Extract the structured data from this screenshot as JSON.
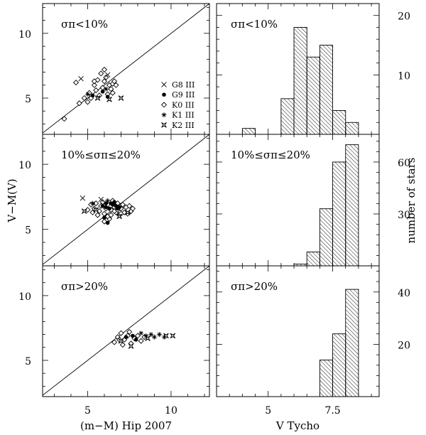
{
  "chart_data": [
    {
      "type": "scatter",
      "panel": "top-left",
      "label": "σπ<10%",
      "xlabel": "",
      "ylabel": "V−M(V)",
      "xlim": [
        2.3,
        12.3
      ],
      "ylim": [
        2.2,
        12.3
      ],
      "xticks": [
        5,
        10
      ],
      "yticks": [
        5,
        10
      ],
      "one_to_one_line": true,
      "legend": {
        "placement": "right",
        "entries": [
          {
            "marker": "x",
            "label": "G8 III"
          },
          {
            "marker": "dot",
            "label": "G9 III"
          },
          {
            "marker": "diamond",
            "label": "K0 III"
          },
          {
            "marker": "asterisk",
            "label": "K1 III"
          },
          {
            "marker": "star4",
            "label": "K2 III"
          }
        ]
      },
      "series": [
        {
          "marker": "diamond",
          "points": [
            [
              3.6,
              3.4
            ],
            [
              4.5,
              4.6
            ],
            [
              4.8,
              5.0
            ],
            [
              5.0,
              4.7
            ],
            [
              5.1,
              5.4
            ],
            [
              5.2,
              5.0
            ],
            [
              5.4,
              6.0
            ],
            [
              5.5,
              5.6
            ],
            [
              5.6,
              6.4
            ],
            [
              5.8,
              6.9
            ],
            [
              5.9,
              5.8
            ],
            [
              6.0,
              6.3
            ],
            [
              6.1,
              6.6
            ],
            [
              6.2,
              5.3
            ],
            [
              6.3,
              6.0
            ],
            [
              6.4,
              5.7
            ],
            [
              6.5,
              6.1
            ],
            [
              6.6,
              6.3
            ],
            [
              6.7,
              6.0
            ],
            [
              6.0,
              7.2
            ],
            [
              5.4,
              6.3
            ],
            [
              5.7,
              5.2
            ],
            [
              6.5,
              5.4
            ],
            [
              4.3,
              6.2
            ]
          ]
        },
        {
          "marker": "x",
          "points": [
            [
              4.6,
              6.5
            ],
            [
              6.2,
              6.8
            ]
          ]
        },
        {
          "marker": "dot",
          "points": [
            [
              5.3,
              5.2
            ],
            [
              5.9,
              5.5
            ],
            [
              6.2,
              5.1
            ]
          ]
        },
        {
          "marker": "asterisk",
          "points": [
            [
              5.0,
              5.3
            ],
            [
              6.1,
              5.7
            ]
          ]
        },
        {
          "marker": "star4",
          "points": [
            [
              5.6,
              5.0
            ],
            [
              6.3,
              4.9
            ],
            [
              7.0,
              5.0
            ]
          ]
        }
      ]
    },
    {
      "type": "scatter",
      "panel": "middle-left",
      "label": "10%≤σπ≤20%",
      "xlabel": "",
      "ylabel": "",
      "xlim": [
        2.3,
        12.3
      ],
      "ylim": [
        2.2,
        12.3
      ],
      "xticks": [
        5,
        10
      ],
      "yticks": [
        5,
        10
      ],
      "one_to_one_line": true,
      "series": [
        {
          "marker": "diamond",
          "points": [
            [
              5.0,
              6.5
            ],
            [
              5.2,
              6.9
            ],
            [
              5.4,
              6.6
            ],
            [
              5.5,
              7.0
            ],
            [
              5.7,
              6.4
            ],
            [
              5.8,
              6.8
            ],
            [
              5.9,
              7.1
            ],
            [
              6.0,
              6.2
            ],
            [
              6.1,
              6.6
            ],
            [
              6.2,
              6.9
            ],
            [
              6.3,
              5.8
            ],
            [
              6.4,
              6.5
            ],
            [
              6.5,
              7.2
            ],
            [
              6.6,
              6.7
            ],
            [
              6.7,
              6.3
            ],
            [
              6.8,
              7.0
            ],
            [
              6.9,
              6.1
            ],
            [
              7.0,
              6.6
            ],
            [
              7.1,
              6.9
            ],
            [
              7.2,
              6.3
            ],
            [
              7.3,
              6.7
            ],
            [
              7.4,
              6.2
            ],
            [
              7.5,
              6.8
            ],
            [
              7.6,
              6.4
            ],
            [
              7.7,
              6.6
            ],
            [
              6.0,
              5.6
            ],
            [
              6.2,
              6.0
            ],
            [
              6.4,
              6.1
            ],
            [
              6.6,
              6.4
            ],
            [
              6.8,
              6.5
            ],
            [
              7.0,
              6.2
            ],
            [
              5.6,
              6.1
            ],
            [
              5.3,
              6.3
            ]
          ]
        },
        {
          "marker": "x",
          "points": [
            [
              4.7,
              7.4
            ],
            [
              5.8,
              7.3
            ]
          ]
        },
        {
          "marker": "dot",
          "points": [
            [
              5.9,
              6.8
            ],
            [
              6.1,
              6.7
            ],
            [
              6.3,
              6.6
            ],
            [
              6.5,
              6.9
            ],
            [
              6.7,
              6.8
            ],
            [
              6.9,
              6.7
            ],
            [
              6.2,
              5.5
            ],
            [
              6.0,
              5.9
            ],
            [
              6.4,
              7.0
            ],
            [
              6.6,
              7.1
            ],
            [
              6.8,
              6.6
            ],
            [
              6.1,
              7.0
            ]
          ]
        },
        {
          "marker": "asterisk",
          "points": [
            [
              5.3,
              7.0
            ],
            [
              6.2,
              7.2
            ],
            [
              6.6,
              6.9
            ]
          ]
        },
        {
          "marker": "star4",
          "points": [
            [
              4.8,
              6.4
            ],
            [
              5.5,
              6.5
            ],
            [
              6.9,
              6.0
            ],
            [
              7.4,
              6.3
            ]
          ]
        }
      ]
    },
    {
      "type": "scatter",
      "panel": "bottom-left",
      "label": "σπ>20%",
      "xlabel": "(m−M) Hip 2007",
      "ylabel": "",
      "xlim": [
        2.3,
        12.3
      ],
      "ylim": [
        2.2,
        12.3
      ],
      "xticks": [
        5,
        10
      ],
      "yticks": [
        5,
        10
      ],
      "one_to_one_line": true,
      "series": [
        {
          "marker": "diamond",
          "points": [
            [
              6.6,
              6.4
            ],
            [
              6.8,
              6.8
            ],
            [
              7.0,
              7.1
            ],
            [
              7.2,
              6.6
            ],
            [
              7.4,
              6.9
            ],
            [
              7.6,
              6.3
            ],
            [
              7.8,
              6.7
            ],
            [
              8.0,
              6.9
            ],
            [
              8.2,
              6.5
            ],
            [
              7.1,
              6.2
            ],
            [
              7.5,
              7.2
            ],
            [
              8.4,
              6.8
            ],
            [
              6.9,
              6.6
            ]
          ]
        },
        {
          "marker": "dot",
          "points": [
            [
              7.3,
              6.8
            ],
            [
              7.7,
              6.9
            ],
            [
              7.9,
              6.6
            ]
          ]
        },
        {
          "marker": "asterisk",
          "points": [
            [
              8.5,
              6.9
            ],
            [
              8.8,
              7.0
            ],
            [
              9.0,
              6.8
            ],
            [
              9.3,
              7.0
            ],
            [
              9.6,
              6.8
            ],
            [
              8.2,
              7.1
            ]
          ]
        },
        {
          "marker": "star4",
          "points": [
            [
              7.0,
              6.5
            ],
            [
              7.6,
              6.1
            ],
            [
              8.6,
              6.7
            ],
            [
              9.7,
              6.9
            ],
            [
              10.1,
              6.9
            ]
          ]
        }
      ]
    },
    {
      "type": "bar",
      "panel": "top-right",
      "label": "σπ<10%",
      "xlabel": "",
      "ylabel": "",
      "xlim": [
        3.0,
        9.3
      ],
      "ylim": [
        0,
        22
      ],
      "yticks": [
        10,
        20
      ],
      "bin_width": 0.5,
      "bin_starts": [
        4.0,
        4.5,
        5.0,
        5.5,
        6.0,
        6.5,
        7.0,
        7.5,
        8.0
      ],
      "values": [
        1,
        0,
        0,
        6,
        18,
        13,
        15,
        4,
        2
      ]
    },
    {
      "type": "bar",
      "panel": "middle-right",
      "label": "10%≤σπ≤20%",
      "xlabel": "",
      "ylabel": "number of stars",
      "xlim": [
        3.0,
        9.3
      ],
      "ylim": [
        0,
        76
      ],
      "yticks": [
        30,
        60
      ],
      "bin_width": 0.5,
      "bin_starts": [
        6.0,
        6.5,
        7.0,
        7.5,
        8.0
      ],
      "values": [
        1,
        8,
        33,
        60,
        70
      ]
    },
    {
      "type": "bar",
      "panel": "bottom-right",
      "label": "σπ>20%",
      "xlabel": "V Tycho",
      "ylabel": "",
      "xlim": [
        3.0,
        9.3
      ],
      "ylim": [
        0,
        50
      ],
      "xticks": [
        5,
        7.5
      ],
      "yticks": [
        20,
        40
      ],
      "bin_width": 0.5,
      "bin_starts": [
        7.0,
        7.5,
        8.0
      ],
      "values": [
        14,
        24,
        41
      ]
    }
  ]
}
